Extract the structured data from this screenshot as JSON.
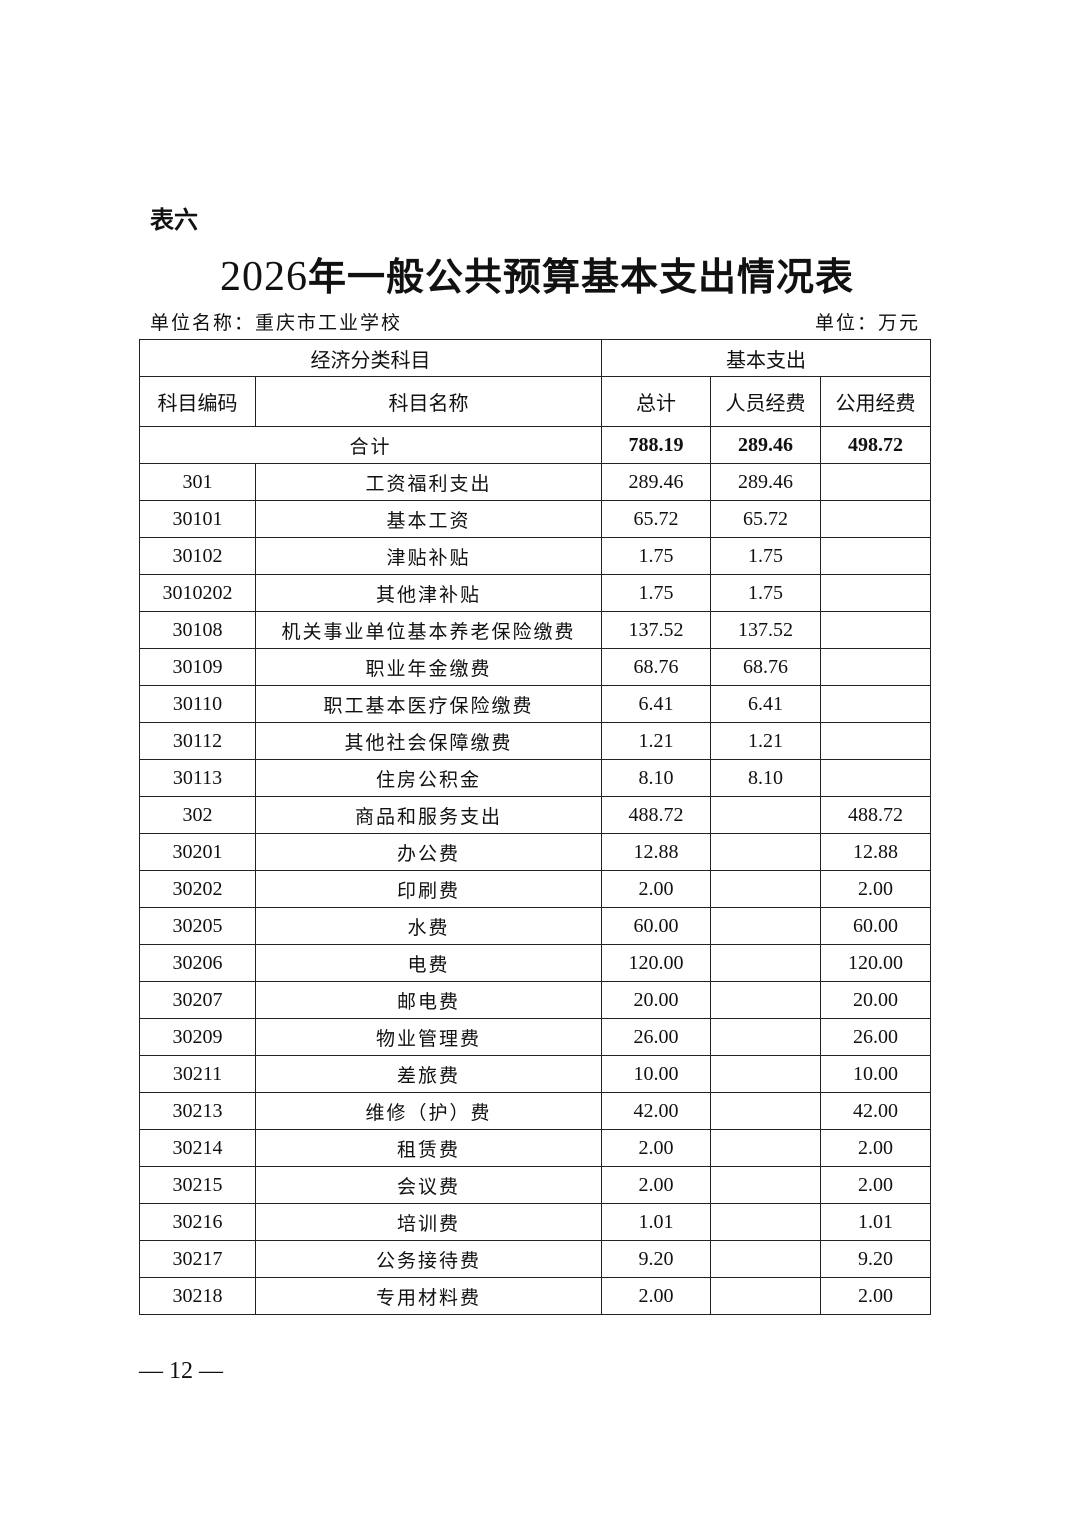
{
  "doc": {
    "label": "表六",
    "title_year": "2026",
    "title_rest": "年一般公共预算基本支出情况表",
    "unit_name": "单位名称：重庆市工业学校",
    "unit": "单位：万元",
    "page_number": "— 12 —"
  },
  "table": {
    "header_group_left": "经济分类科目",
    "header_group_right": "基本支出",
    "columns": [
      "科目编码",
      "科目名称",
      "总计",
      "人员经费",
      "公用经费"
    ],
    "total": {
      "label": "合计",
      "total": "788.19",
      "personnel": "289.46",
      "public": "498.72"
    },
    "rows": [
      [
        "301",
        "工资福利支出",
        "289.46",
        "289.46",
        ""
      ],
      [
        "30101",
        "基本工资",
        "65.72",
        "65.72",
        ""
      ],
      [
        "30102",
        "津贴补贴",
        "1.75",
        "1.75",
        ""
      ],
      [
        "3010202",
        "其他津补贴",
        "1.75",
        "1.75",
        ""
      ],
      [
        "30108",
        "机关事业单位基本养老保险缴费",
        "137.52",
        "137.52",
        ""
      ],
      [
        "30109",
        "职业年金缴费",
        "68.76",
        "68.76",
        ""
      ],
      [
        "30110",
        "职工基本医疗保险缴费",
        "6.41",
        "6.41",
        ""
      ],
      [
        "30112",
        "其他社会保障缴费",
        "1.21",
        "1.21",
        ""
      ],
      [
        "30113",
        "住房公积金",
        "8.10",
        "8.10",
        ""
      ],
      [
        "302",
        "商品和服务支出",
        "488.72",
        "",
        "488.72"
      ],
      [
        "30201",
        "办公费",
        "12.88",
        "",
        "12.88"
      ],
      [
        "30202",
        "印刷费",
        "2.00",
        "",
        "2.00"
      ],
      [
        "30205",
        "水费",
        "60.00",
        "",
        "60.00"
      ],
      [
        "30206",
        "电费",
        "120.00",
        "",
        "120.00"
      ],
      [
        "30207",
        "邮电费",
        "20.00",
        "",
        "20.00"
      ],
      [
        "30209",
        "物业管理费",
        "26.00",
        "",
        "26.00"
      ],
      [
        "30211",
        "差旅费",
        "10.00",
        "",
        "10.00"
      ],
      [
        "30213",
        "维修（护）费",
        "42.00",
        "",
        "42.00"
      ],
      [
        "30214",
        "租赁费",
        "2.00",
        "",
        "2.00"
      ],
      [
        "30215",
        "会议费",
        "2.00",
        "",
        "2.00"
      ],
      [
        "30216",
        "培训费",
        "1.01",
        "",
        "1.01"
      ],
      [
        "30217",
        "公务接待费",
        "9.20",
        "",
        "9.20"
      ],
      [
        "30218",
        "专用材料费",
        "2.00",
        "",
        "2.00"
      ]
    ]
  }
}
